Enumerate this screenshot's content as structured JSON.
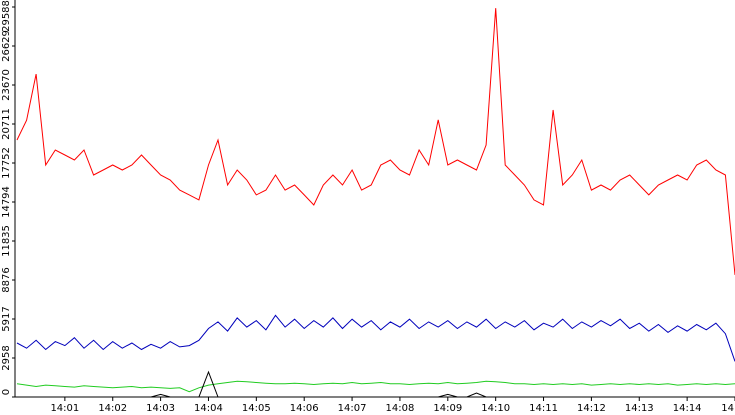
{
  "chart_data": {
    "type": "line",
    "x": [
      840.0,
      840.2,
      840.4,
      840.6,
      840.8,
      841.0,
      841.2,
      841.4,
      841.6,
      841.8,
      842.0,
      842.2,
      842.4,
      842.6,
      842.8,
      843.0,
      843.2,
      843.4,
      843.6,
      843.8,
      844.0,
      844.2,
      844.4,
      844.6,
      844.8,
      845.0,
      845.2,
      845.4,
      845.6,
      845.8,
      846.0,
      846.2,
      846.4,
      846.6,
      846.8,
      847.0,
      847.2,
      847.4,
      847.6,
      847.8,
      848.0,
      848.2,
      848.4,
      848.6,
      848.8,
      849.0,
      849.2,
      849.4,
      849.6,
      849.8,
      850.0,
      850.2,
      850.4,
      850.6,
      850.8,
      851.0,
      851.2,
      851.4,
      851.6,
      851.8,
      852.0,
      852.2,
      852.4,
      852.6,
      852.8,
      853.0,
      853.2,
      853.4,
      853.6,
      853.8,
      854.0,
      854.2,
      854.4,
      854.6,
      854.8,
      855.0
    ],
    "series": [
      {
        "color": "#ff0000",
        "values": [
          19500,
          21000,
          24500,
          17600,
          18740,
          18360,
          17980,
          18740,
          16840,
          17220,
          17600,
          17220,
          17600,
          18360,
          17600,
          16840,
          16460,
          15700,
          15330,
          14950,
          17600,
          19500,
          16080,
          17220,
          16460,
          15330,
          15700,
          16840,
          15700,
          16080,
          15330,
          14570,
          16080,
          16840,
          16080,
          17220,
          15700,
          16080,
          17600,
          17980,
          17220,
          16840,
          18740,
          17600,
          21020,
          17600,
          17980,
          17600,
          17220,
          19120,
          29500,
          17600,
          16840,
          16080,
          14950,
          14570,
          21770,
          16080,
          16840,
          17980,
          15700,
          16080,
          15700,
          16460,
          16840,
          16080,
          15330,
          16080,
          16460,
          16840,
          16460,
          17600,
          17980,
          17220,
          16840,
          9260
        ]
      },
      {
        "color": "#0000bb",
        "values": [
          4100,
          3700,
          4300,
          3600,
          4200,
          3900,
          4500,
          3700,
          4300,
          3600,
          4200,
          3700,
          4100,
          3600,
          4000,
          3700,
          4200,
          3800,
          3900,
          4300,
          5200,
          5700,
          5000,
          6000,
          5300,
          5800,
          5100,
          6200,
          5300,
          5900,
          5200,
          5800,
          5300,
          6000,
          5200,
          5900,
          5300,
          5800,
          5100,
          5700,
          5300,
          5900,
          5200,
          5700,
          5300,
          5800,
          5200,
          5700,
          5300,
          5900,
          5200,
          5700,
          5300,
          5800,
          5100,
          5600,
          5300,
          5900,
          5200,
          5700,
          5300,
          5800,
          5400,
          5900,
          5200,
          5600,
          5000,
          5500,
          4900,
          5400,
          5000,
          5500,
          5100,
          5600,
          4800,
          2700
        ]
      },
      {
        "color": "#22cc22",
        "values": [
          1000,
          900,
          800,
          900,
          850,
          800,
          750,
          850,
          800,
          750,
          700,
          750,
          800,
          700,
          750,
          700,
          650,
          700,
          400,
          700,
          900,
          1000,
          1100,
          1200,
          1150,
          1100,
          1050,
          1000,
          1000,
          1050,
          1000,
          950,
          1000,
          1050,
          1000,
          1100,
          1000,
          1050,
          1100,
          1000,
          1000,
          950,
          1000,
          1050,
          1000,
          1100,
          1000,
          1050,
          1100,
          1200,
          1150,
          1100,
          1000,
          1000,
          950,
          1000,
          950,
          1000,
          950,
          1000,
          900,
          950,
          1000,
          950,
          1000,
          950,
          1000,
          950,
          1000,
          900,
          950,
          1000,
          950,
          1000,
          950,
          1000
        ]
      },
      {
        "color": "#000000",
        "values": [
          0,
          0,
          0,
          0,
          0,
          0,
          0,
          0,
          0,
          0,
          0,
          0,
          0,
          0,
          0,
          200,
          0,
          0,
          0,
          0,
          1900,
          0,
          0,
          0,
          0,
          0,
          0,
          0,
          0,
          0,
          0,
          0,
          0,
          0,
          0,
          0,
          0,
          0,
          0,
          0,
          0,
          0,
          0,
          0,
          0,
          200,
          0,
          0,
          300,
          0,
          0,
          0,
          0,
          0,
          0,
          0,
          0,
          0,
          0,
          0,
          0,
          0,
          0,
          0,
          0,
          0,
          0,
          0,
          0,
          0,
          0,
          0,
          0,
          0,
          0,
          0
        ]
      }
    ],
    "xlim": [
      840,
      855
    ],
    "xticks": [
      {
        "value": 841,
        "label": "14:01"
      },
      {
        "value": 842,
        "label": "14:02"
      },
      {
        "value": 843,
        "label": "14:03"
      },
      {
        "value": 844,
        "label": "14:04"
      },
      {
        "value": 845,
        "label": "14:05"
      },
      {
        "value": 846,
        "label": "14:06"
      },
      {
        "value": 847,
        "label": "14:07"
      },
      {
        "value": 848,
        "label": "14:08"
      },
      {
        "value": 849,
        "label": "14:09"
      },
      {
        "value": 850,
        "label": "14:10"
      },
      {
        "value": 851,
        "label": "14:11"
      },
      {
        "value": 852,
        "label": "14:12"
      },
      {
        "value": 853,
        "label": "14:13"
      },
      {
        "value": 854,
        "label": "14:14"
      },
      {
        "value": 855,
        "label": "14"
      }
    ],
    "ylim": [
      0,
      29588
    ],
    "yticks": [
      0,
      2958,
      5917,
      8876,
      11835,
      14794,
      17752,
      20711,
      23670,
      26629,
      29588
    ],
    "grid": false
  }
}
